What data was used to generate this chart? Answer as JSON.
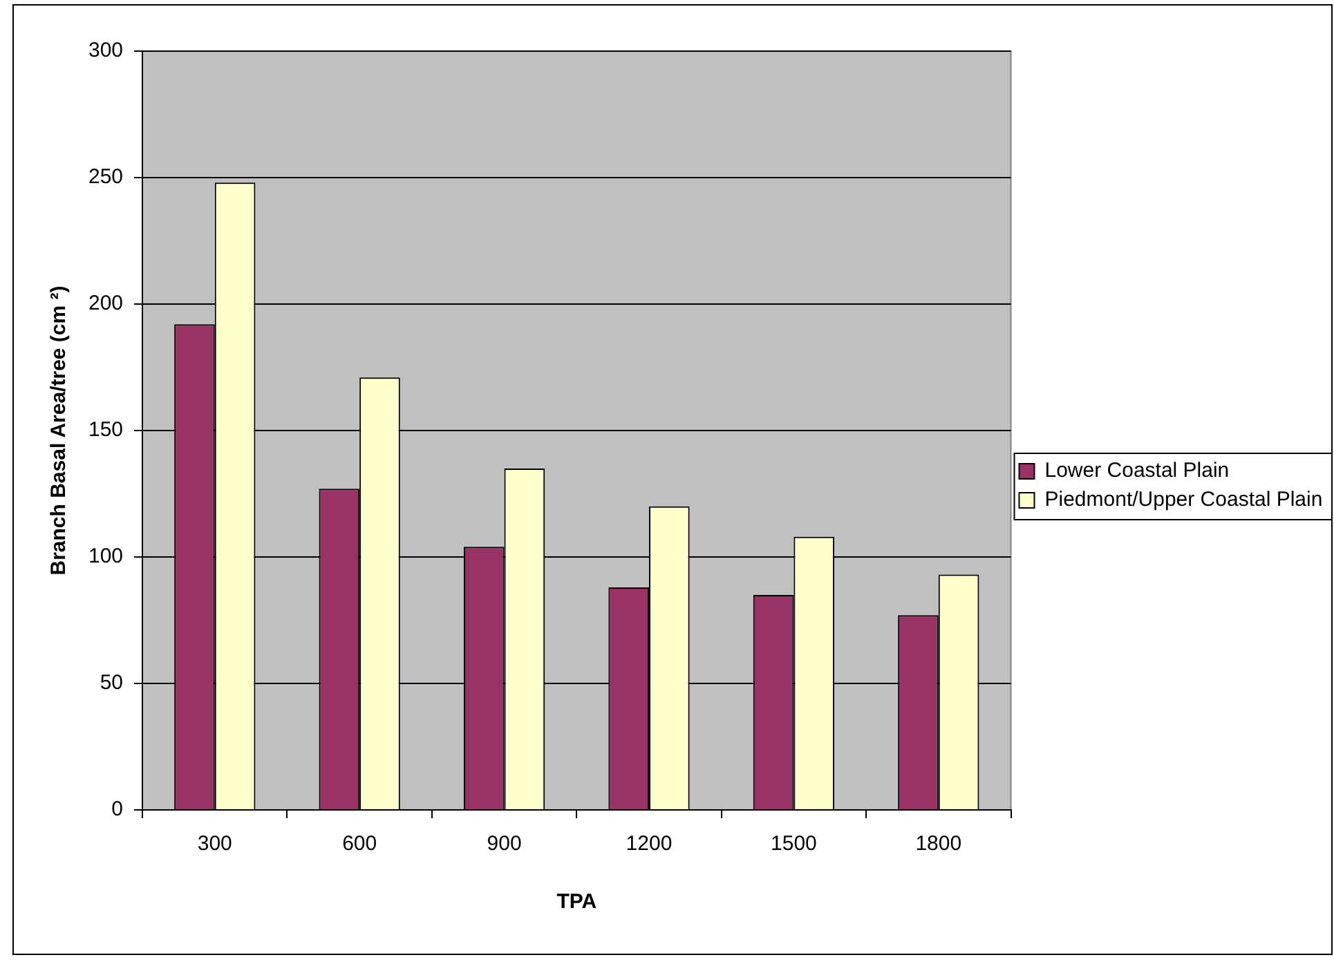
{
  "chart_data": {
    "type": "bar",
    "xlabel": "TPA",
    "ylabel": "Branch Basal Area/tree (cm ²)",
    "categories": [
      "300",
      "600",
      "900",
      "1200",
      "1500",
      "1800"
    ],
    "series": [
      {
        "name": "Lower Coastal Plain",
        "color": "#993366",
        "values": [
          192,
          127,
          104,
          88,
          85,
          77
        ]
      },
      {
        "name": "Piedmont/Upper Coastal Plain",
        "color": "#ffffcc",
        "values": [
          248,
          171,
          135,
          120,
          108,
          93
        ]
      }
    ],
    "ylim": [
      0,
      300
    ],
    "yticks": [
      0,
      50,
      100,
      150,
      200,
      250,
      300
    ],
    "grid": "y",
    "legend": "right"
  }
}
